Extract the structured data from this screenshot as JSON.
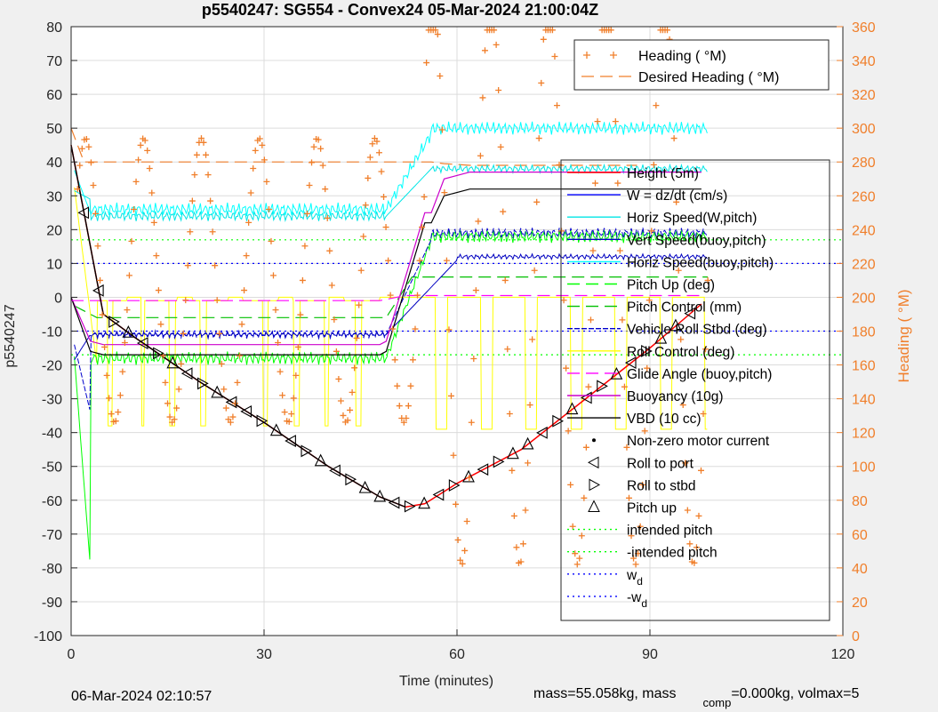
{
  "colors": {
    "heading": "#f07f2b",
    "height": "#ff0000",
    "w": "#0000ff",
    "horiz_w_pitch": "#00e5e5",
    "vert_buoy": "#0000c0",
    "horiz_buoy": "#00ffff",
    "pitch_up": "#00ff00",
    "pitch_control": "#00c000",
    "roll": "#0000cc",
    "roll_control": "#ffff00",
    "glide": "#ff00ff",
    "buoyancy": "#cc00cc",
    "vbd": "#000000",
    "intended_pitch": "#00ff00",
    "wd": "#0000ff"
  },
  "chart_data": {
    "type": "line",
    "title": "p5540247: SG554 - Convex24 05-Mar-2024 21:00:04Z",
    "xlabel": "Time (minutes)",
    "ylabel": "p5540247",
    "y2label": "Heading (  °M)",
    "xlim": [
      0,
      120
    ],
    "ylim": [
      -100,
      80
    ],
    "y2lim": [
      0,
      360
    ],
    "xticks": [
      0,
      30,
      60,
      90,
      120
    ],
    "yticks": [
      -100,
      -90,
      -80,
      -70,
      -60,
      -50,
      -40,
      -30,
      -20,
      -10,
      0,
      10,
      20,
      30,
      40,
      50,
      60,
      70,
      80
    ],
    "y2ticks": [
      0,
      20,
      40,
      60,
      80,
      100,
      120,
      140,
      160,
      180,
      200,
      220,
      240,
      260,
      280,
      300,
      320,
      340,
      360
    ],
    "grid": true,
    "legend_top": [
      "Heading (  °M)",
      "Desired Heading (   °M)"
    ],
    "legend_main": [
      "Height (5m)",
      "W = dz/dt (cm/s)",
      "Horiz Speed(W,pitch)",
      "Vert Speed(buoy,pitch)",
      "Horiz Speed(buoy,pitch)",
      "Pitch Up (deg)",
      "Pitch Control (mm)",
      "Vehicle Roll Stbd (deg)",
      "Roll Control (deg)",
      "Glide Angle (buoy,pitch)",
      "Buoyancy (10g)",
      "VBD (10 cc)",
      "Non-zero motor current",
      "Roll to port",
      "Roll to stbd",
      "Pitch up",
      "intended pitch",
      "-intended pitch",
      "w_d",
      "-w_d"
    ],
    "series": [
      {
        "name": "Height (5m)",
        "x": [
          0,
          5,
          10,
          20,
          30,
          40,
          48,
          52,
          55,
          60,
          70,
          80,
          90,
          98
        ],
        "y": [
          45,
          -5,
          -12,
          -25,
          -37,
          -50,
          -59,
          -62,
          -61,
          -55,
          -45,
          -30,
          -15,
          -2
        ]
      },
      {
        "name": "Desired Heading (   °M)",
        "x": [
          0,
          2,
          56,
          58,
          62,
          88
        ],
        "y": [
          300,
          280,
          280,
          279,
          278,
          278
        ]
      },
      {
        "name": "Buoyancy (10g)",
        "x": [
          0,
          3,
          5,
          48,
          49,
          55,
          56,
          58,
          62,
          98
        ],
        "y": [
          0,
          -13,
          -14,
          -14,
          -13,
          25,
          25,
          35,
          37,
          37
        ]
      },
      {
        "name": "VBD (10 cc)",
        "x": [
          0,
          3,
          5,
          48,
          49,
          55,
          56,
          58,
          62,
          98
        ],
        "y": [
          0,
          -16,
          -17,
          -17,
          -16,
          22,
          22,
          30,
          32,
          32
        ]
      },
      {
        "name": "Horiz Speed(W,pitch)",
        "x": [
          0,
          2,
          4,
          10,
          20,
          30,
          40,
          48,
          50,
          55,
          60,
          70,
          80,
          90,
          98
        ],
        "y": [
          30,
          40,
          30,
          26,
          25,
          26,
          26,
          25,
          25,
          40,
          48,
          50,
          51,
          52,
          50
        ]
      },
      {
        "name": "Vert Speed(buoy,pitch)",
        "x": [
          0,
          3,
          10,
          20,
          30,
          40,
          48,
          50,
          55,
          60,
          70,
          80,
          90,
          98
        ],
        "y": [
          -20,
          -12,
          -11,
          -11,
          -10,
          -11,
          -11,
          2,
          8,
          10,
          12,
          13,
          13,
          12
        ]
      },
      {
        "name": "Pitch Up (deg)",
        "x": [
          0,
          2,
          3,
          5,
          10,
          20,
          30,
          40,
          48,
          50,
          55,
          60,
          70,
          80,
          90,
          98
        ],
        "y": [
          -40,
          -70,
          -80,
          -20,
          -18,
          -18,
          -18,
          -18,
          -17,
          10,
          16,
          18,
          18,
          18,
          18,
          17
        ]
      },
      {
        "name": "Pitch Control (mm)",
        "x": [
          0,
          4,
          48,
          52,
          60,
          98
        ],
        "y": [
          -2,
          -6,
          -6,
          5,
          6,
          6
        ]
      },
      {
        "name": "Vehicle Roll Stbd (deg)",
        "x": [
          0,
          2,
          4,
          10,
          20,
          30,
          40,
          48,
          50,
          55,
          60,
          70,
          80,
          90,
          98
        ],
        "y": [
          -10,
          -30,
          -12,
          -11,
          -11,
          -11,
          -11,
          -12,
          2,
          15,
          17,
          18,
          19,
          20,
          19
        ]
      },
      {
        "name": "Glide Angle (buoy,pitch)",
        "x": [
          0,
          5,
          48,
          52,
          98
        ],
        "y": [
          -1,
          -1,
          -1,
          0.5,
          0.5
        ]
      },
      {
        "name": "intended pitch",
        "x": [
          0,
          120
        ],
        "y": [
          17,
          17
        ]
      },
      {
        "name": "-intended pitch",
        "x": [
          0,
          120
        ],
        "y": [
          -17,
          -17
        ]
      },
      {
        "name": "w_d",
        "x": [
          0,
          120
        ],
        "y": [
          10,
          10
        ]
      },
      {
        "name": "-w_d",
        "x": [
          0,
          120
        ],
        "y": [
          -10,
          -10
        ]
      }
    ],
    "heading_points": "orange plus markers, sawtooth pattern on right axis",
    "annotations": [
      "06-Mar-2024 02:10:57",
      "mass=55.058kg, mass",
      "comp",
      "=0.000kg, volmax=5"
    ]
  },
  "footer": {
    "timestamp": "06-Mar-2024 02:10:57",
    "mass_prefix": "mass=55.058kg, mass",
    "mass_sub": "comp",
    "mass_suffix": "=0.000kg, volmax=5"
  }
}
